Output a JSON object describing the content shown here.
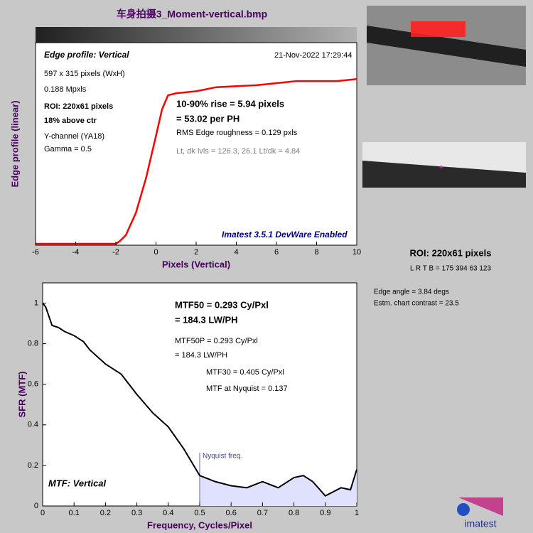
{
  "title": "车身拍摄3_Moment-vertical.bmp",
  "chart_data": [
    {
      "type": "line",
      "xlabel": "Pixels (Vertical)",
      "ylabel": "Edge profile (linear)",
      "color": "#ff0000",
      "x": [
        -6,
        -4,
        -2,
        -1.8,
        -1.5,
        -1,
        -0.5,
        0,
        0.3,
        0.6,
        1,
        2,
        3,
        4,
        5,
        6,
        7,
        8,
        9,
        10
      ],
      "values": [
        0.007,
        0.007,
        0.007,
        0.02,
        0.05,
        0.16,
        0.33,
        0.54,
        0.67,
        0.74,
        0.75,
        0.76,
        0.78,
        0.785,
        0.79,
        0.8,
        0.81,
        0.81,
        0.81,
        0.82
      ],
      "xlim": [
        -6,
        10
      ],
      "xticks": [
        -6,
        -4,
        -2,
        0,
        2,
        4,
        6,
        8,
        10
      ],
      "ylim": [
        0,
        1
      ],
      "annotations": [
        "Edge profile: Vertical",
        "21-Nov-2022 17:29:44",
        "597 x 315 pixels (WxH)",
        "0.188 Mpxls",
        "ROI:  220x61 pixels",
        "18% above ctr",
        "Y-channel  (YA18)",
        "Gamma = 0.5",
        "10-90% rise = 5.94 pixels",
        "= 53.02 per PH",
        "RMS Edge roughness = 0.129 pxls",
        "Lt, dk lvls = 126.3, 26.1   Lt/dk = 4.84",
        "Imatest 3.5.1 DevWare Enabled"
      ]
    },
    {
      "type": "line",
      "xlabel": "Frequency, Cycles/Pixel",
      "ylabel": "SFR (MTF)",
      "color": "#000000",
      "fill": "#e0e0ff",
      "x": [
        0,
        0.01,
        0.03,
        0.05,
        0.07,
        0.1,
        0.13,
        0.15,
        0.2,
        0.25,
        0.3,
        0.35,
        0.4,
        0.45,
        0.5,
        0.55,
        0.6,
        0.65,
        0.7,
        0.75,
        0.8,
        0.83,
        0.86,
        0.9,
        0.95,
        0.98,
        1.0
      ],
      "values": [
        1.0,
        0.98,
        0.89,
        0.88,
        0.86,
        0.84,
        0.81,
        0.77,
        0.7,
        0.65,
        0.55,
        0.46,
        0.39,
        0.28,
        0.15,
        0.12,
        0.1,
        0.09,
        0.12,
        0.09,
        0.14,
        0.15,
        0.12,
        0.05,
        0.09,
        0.08,
        0.18
      ],
      "xlim": [
        0,
        1
      ],
      "xticks": [
        0,
        0.1,
        0.2,
        0.3,
        0.4,
        0.5,
        0.6,
        0.7,
        0.8,
        0.9,
        1
      ],
      "ylim": [
        0,
        1.1
      ],
      "yticks": [
        0,
        0.2,
        0.4,
        0.6,
        0.8,
        1
      ],
      "nyquist": 0.5,
      "nyquist_label": "Nyquist freq.",
      "annotations": [
        "MTF50 = 0.293 Cy/Pxl",
        "= 184.3 LW/PH",
        "MTF50P = 0.293 Cy/Pxl",
        "= 184.3 LW/PH",
        "MTF30 = 0.405 Cy/Pxl",
        "MTF at Nyquist = 0.137",
        "MTF: Vertical"
      ]
    }
  ],
  "side_panel": [
    "ROI:  220x61 pixels",
    "L R  T B = 175 394  63 123",
    "Edge angle = 3.84 degs",
    "Estm. chart contrast = 23.5"
  ],
  "logo": "imatest"
}
